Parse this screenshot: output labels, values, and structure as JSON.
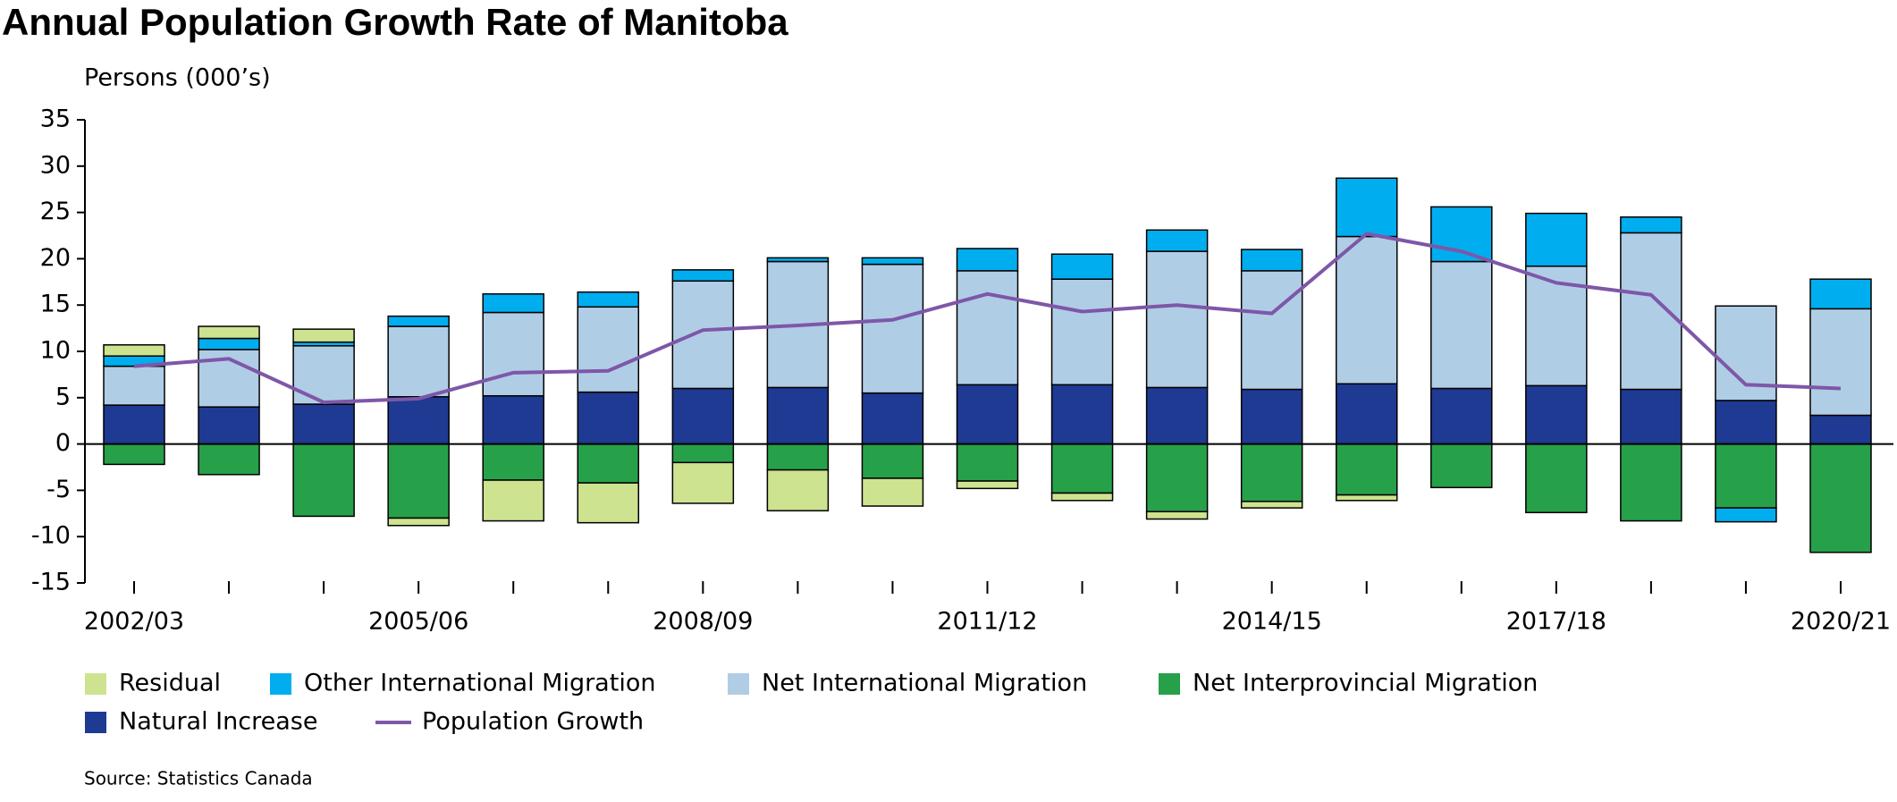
{
  "chart_data": {
    "type": "bar",
    "stacked": true,
    "title": "Annual Population Growth Rate of Manitoba",
    "y_label": "Persons (000’s)",
    "source": "Source: Statistics Canada",
    "categories": [
      "2002/03",
      null,
      null,
      "2005/06",
      null,
      null,
      "2008/09",
      null,
      null,
      "2011/12",
      null,
      null,
      "2014/15",
      null,
      null,
      "2017/18",
      null,
      null,
      "2020/21"
    ],
    "ylim": [
      -15,
      35
    ],
    "yticks": [
      -15,
      -10,
      -5,
      0,
      5,
      10,
      15,
      20,
      25,
      30,
      35
    ],
    "series": [
      {
        "name": "Residual",
        "type": "bar",
        "color": "#cde38f",
        "values": [
          1.2,
          1.3,
          1.4,
          -0.8,
          -4.4,
          -4.3,
          -4.4,
          -4.4,
          -3.0,
          -0.8,
          -0.8,
          -0.8,
          -0.7,
          -0.6,
          null,
          null,
          null,
          null,
          null
        ]
      },
      {
        "name": "Other International Migration",
        "type": "bar",
        "color": "#00aeef",
        "values": [
          1.1,
          1.2,
          0.4,
          1.1,
          2.0,
          1.6,
          1.2,
          0.4,
          0.7,
          2.4,
          2.7,
          2.3,
          2.3,
          6.3,
          5.9,
          5.7,
          1.7,
          -1.5,
          3.2
        ]
      },
      {
        "name": "Net International Migration",
        "type": "bar",
        "color": "#b0cde6",
        "values": [
          4.2,
          6.2,
          6.3,
          7.6,
          9.0,
          9.2,
          11.6,
          13.6,
          13.9,
          12.3,
          11.4,
          14.7,
          12.8,
          15.9,
          13.7,
          12.9,
          16.9,
          10.2,
          11.5
        ]
      },
      {
        "name": "Net Interprovincial Migration",
        "type": "bar",
        "color": "#27a04a",
        "values": [
          -2.2,
          -3.3,
          -7.8,
          -8.0,
          -3.9,
          -4.2,
          -2.0,
          -2.8,
          -3.7,
          -4.0,
          -5.3,
          -7.3,
          -6.2,
          -5.5,
          -4.7,
          -7.4,
          -8.3,
          -6.9,
          -11.7
        ]
      },
      {
        "name": "Natural Increase",
        "type": "bar",
        "color": "#1f3a93",
        "values": [
          4.2,
          4.0,
          4.3,
          5.1,
          5.2,
          5.6,
          6.0,
          6.1,
          5.5,
          6.4,
          6.4,
          6.1,
          5.9,
          6.5,
          6.0,
          6.3,
          5.9,
          4.7,
          3.1
        ]
      },
      {
        "name": "Population Growth",
        "type": "line",
        "color": "#7e57a8",
        "values": [
          8.4,
          9.2,
          4.5,
          4.9,
          7.7,
          7.9,
          12.3,
          12.8,
          13.4,
          16.2,
          14.3,
          15.0,
          14.1,
          22.7,
          20.8,
          17.4,
          16.1,
          6.4,
          6.0
        ]
      }
    ]
  }
}
